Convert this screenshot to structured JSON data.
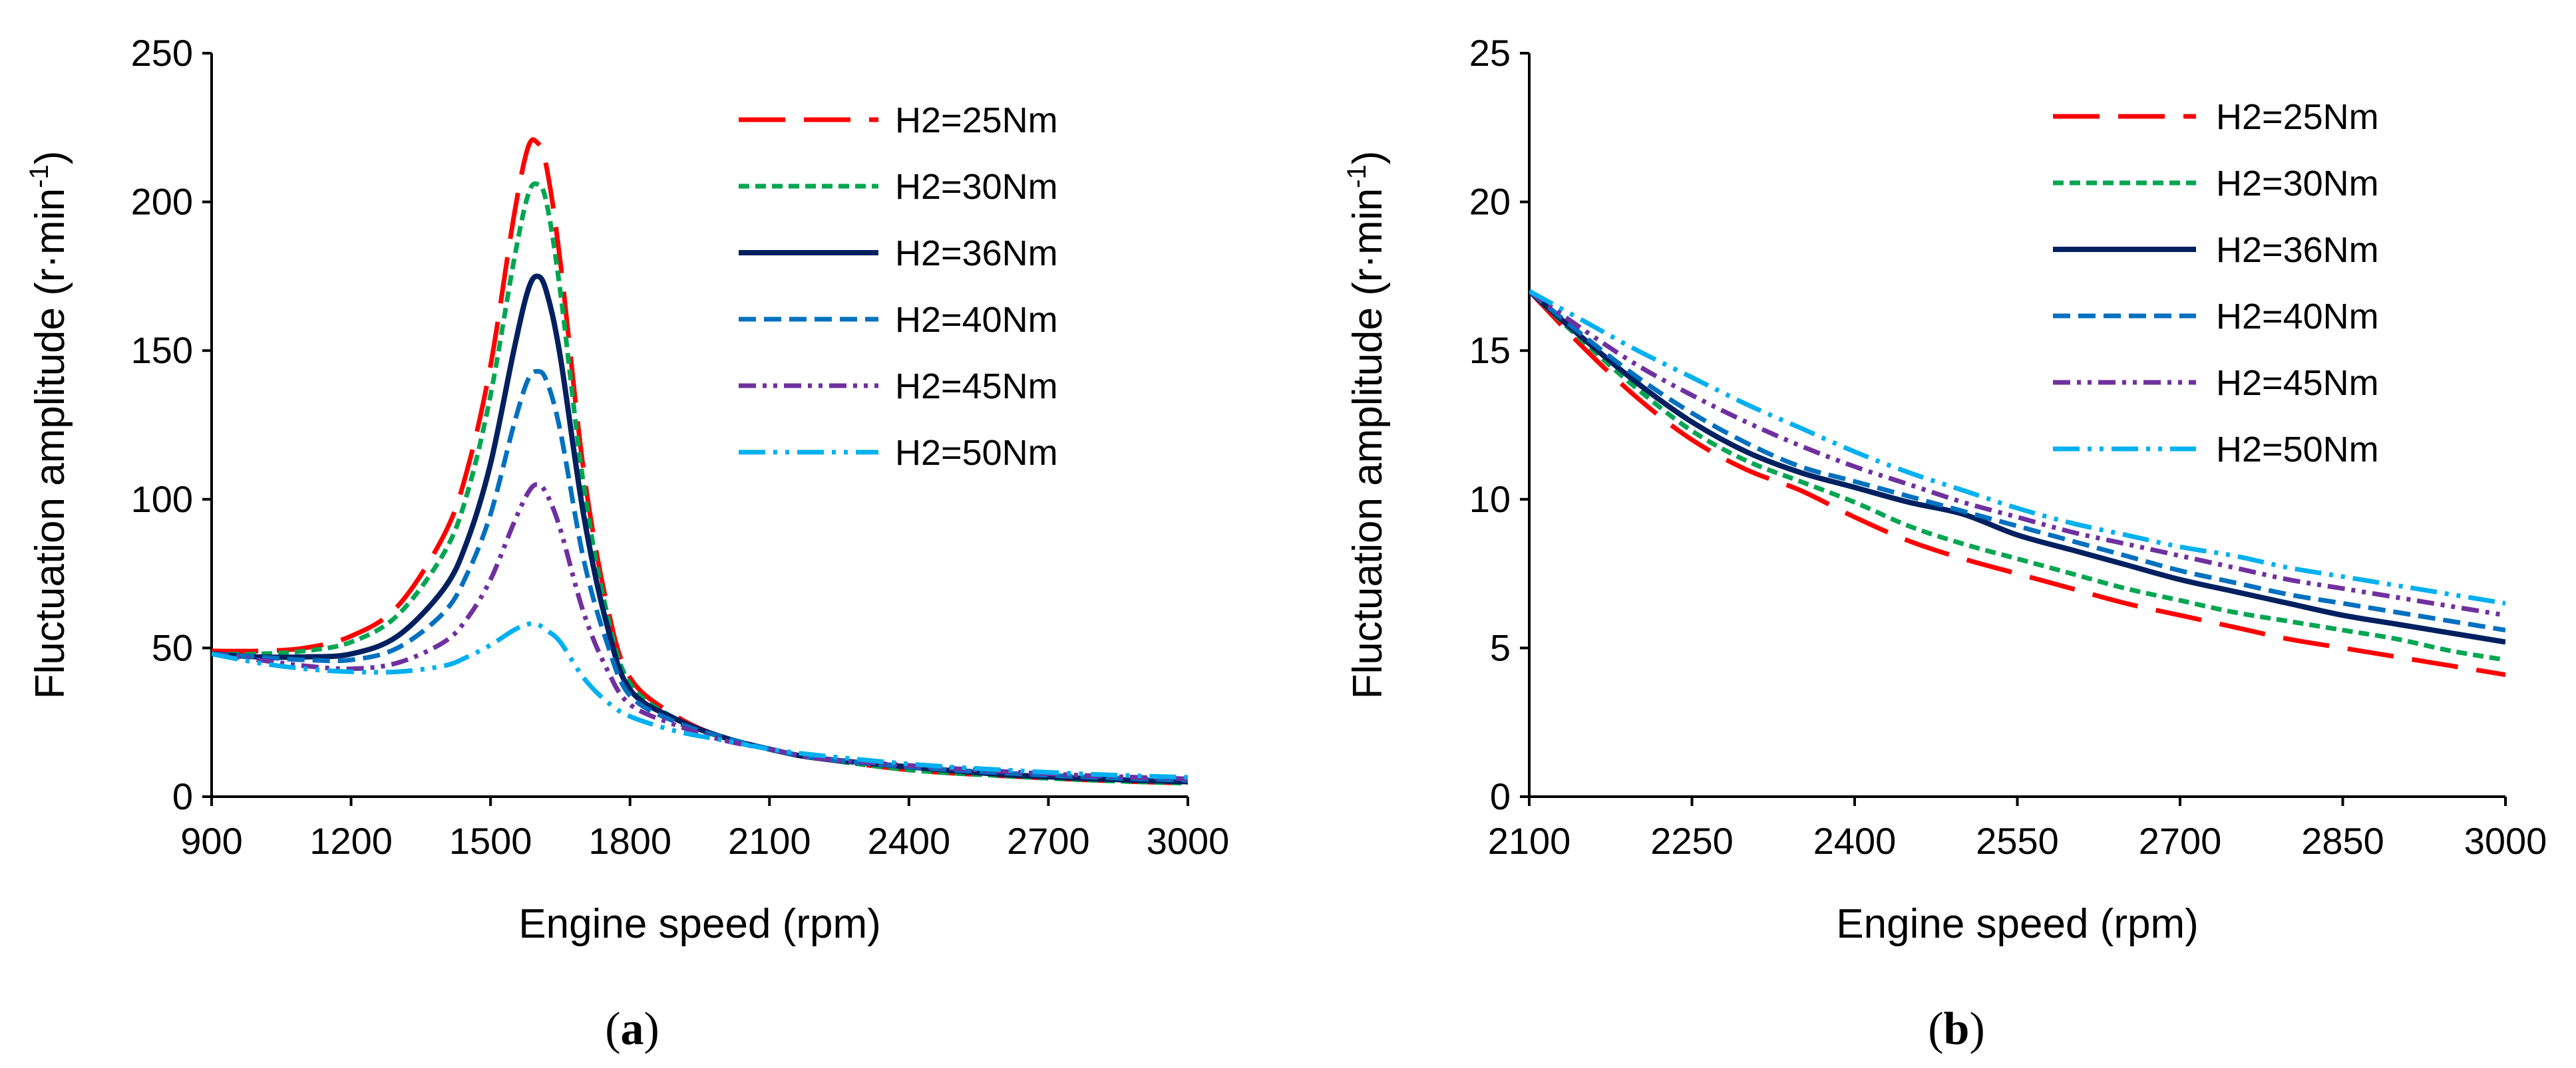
{
  "chart_data": [
    {
      "type": "line",
      "panel": "a",
      "caption": {
        "open": "(",
        "letter": "a",
        "close": ")"
      },
      "xlabel": "Engine speed (rpm)",
      "ylabel": "Fluctuation amplitude (r·min",
      "ylabel_sup": "-1",
      "ylabel_close": ")",
      "xlim": [
        900,
        3000
      ],
      "ylim": [
        0,
        250
      ],
      "xticks": [
        900,
        1200,
        1500,
        1800,
        2100,
        2400,
        2700,
        3000
      ],
      "yticks": [
        0,
        50,
        100,
        150,
        200,
        250
      ],
      "legend_position": "top-right",
      "x": [
        900,
        1000,
        1100,
        1200,
        1300,
        1400,
        1450,
        1500,
        1550,
        1580,
        1600,
        1620,
        1650,
        1700,
        1750,
        1800,
        1900,
        2000,
        2100,
        2200,
        2400,
        2600,
        2800,
        3000
      ],
      "series": [
        {
          "name": "H2=25Nm",
          "color": "#ff0000",
          "dash": "70,28",
          "width": 7,
          "values": [
            49,
            49,
            50,
            54,
            64,
            88,
            110,
            145,
            195,
            218,
            220,
            212,
            180,
            110,
            65,
            40,
            27,
            20,
            16,
            13,
            9,
            7,
            5.5,
            4.5
          ]
        },
        {
          "name": "H2=30Nm",
          "color": "#00a651",
          "dash": "16,9",
          "width": 7,
          "values": [
            48,
            48,
            49,
            52,
            61,
            82,
            102,
            135,
            180,
            202,
            206,
            200,
            170,
            105,
            62,
            38,
            26,
            20,
            16,
            13,
            9,
            7,
            5.5,
            4.5
          ]
        },
        {
          "name": "H2=36Nm",
          "color": "#002060",
          "dash": "",
          "width": 8,
          "values": [
            48,
            47,
            47,
            48,
            54,
            70,
            86,
            112,
            150,
            170,
            175,
            170,
            148,
            95,
            58,
            36,
            26,
            20,
            16,
            13,
            10,
            7.5,
            6,
            5
          ]
        },
        {
          "name": "H2=40Nm",
          "color": "#0070c0",
          "dash": "26,12",
          "width": 7,
          "values": [
            48,
            47,
            46,
            46,
            50,
            62,
            75,
            95,
            125,
            140,
            143,
            140,
            123,
            80,
            52,
            34,
            25,
            20,
            16,
            13,
            10,
            8,
            6.5,
            5.5
          ]
        },
        {
          "name": "H2=45Nm",
          "color": "#7030a0",
          "dash": "26,10,6,10,6,10",
          "width": 7,
          "values": [
            48,
            46,
            44,
            43,
            45,
            52,
            60,
            73,
            92,
            102,
            105,
            102,
            90,
            62,
            43,
            31,
            24,
            19,
            16,
            13,
            10.5,
            8.5,
            7,
            6
          ]
        },
        {
          "name": "H2=50Nm",
          "color": "#00b0f0",
          "dash": "40,12,6,12,6,12",
          "width": 7,
          "values": [
            48,
            45,
            43,
            42,
            42,
            44,
            47,
            51,
            56,
            58,
            58,
            56,
            52,
            40,
            32,
            27,
            22,
            19,
            16,
            14,
            11,
            9,
            7.5,
            6.5
          ]
        }
      ]
    },
    {
      "type": "line",
      "panel": "b",
      "caption": {
        "open": "(",
        "letter": "b",
        "close": ")"
      },
      "xlabel": "Engine speed (rpm)",
      "ylabel": "Fluctuation amplitude (r·min",
      "ylabel_sup": "-1",
      "ylabel_close": ")",
      "xlim": [
        2100,
        3000
      ],
      "ylim": [
        0,
        25
      ],
      "xticks": [
        2100,
        2250,
        2400,
        2550,
        2700,
        2850,
        3000
      ],
      "yticks": [
        0,
        5,
        10,
        15,
        20,
        25
      ],
      "legend_position": "top-right",
      "x": [
        2100,
        2150,
        2200,
        2250,
        2300,
        2350,
        2400,
        2450,
        2500,
        2550,
        2600,
        2650,
        2700,
        2750,
        2800,
        2850,
        2900,
        2950,
        3000
      ],
      "series": [
        {
          "name": "H2=25Nm",
          "color": "#ff0000",
          "dash": "70,28",
          "width": 7,
          "values": [
            17,
            15.1,
            13.4,
            12,
            11,
            10.3,
            9.4,
            8.6,
            8,
            7.5,
            7,
            6.5,
            6.1,
            5.7,
            5.3,
            5,
            4.7,
            4.4,
            4.1
          ]
        },
        {
          "name": "H2=30Nm",
          "color": "#00a651",
          "dash": "16,9",
          "width": 7,
          "values": [
            17,
            15.3,
            13.7,
            12.3,
            11.3,
            10.6,
            9.9,
            9.1,
            8.5,
            8,
            7.5,
            7,
            6.6,
            6.2,
            5.9,
            5.6,
            5.3,
            4.9,
            4.6
          ]
        },
        {
          "name": "H2=36Nm",
          "color": "#002060",
          "dash": "",
          "width": 8,
          "values": [
            17,
            15.4,
            13.9,
            12.6,
            11.6,
            10.9,
            10.4,
            9.9,
            9.5,
            8.8,
            8.3,
            7.8,
            7.3,
            6.9,
            6.5,
            6.1,
            5.8,
            5.5,
            5.2
          ]
        },
        {
          "name": "H2=40Nm",
          "color": "#0070c0",
          "dash": "26,12",
          "width": 7,
          "values": [
            17,
            15.5,
            14.1,
            12.9,
            11.9,
            11.1,
            10.6,
            10.1,
            9.6,
            9.1,
            8.6,
            8.1,
            7.6,
            7.2,
            6.8,
            6.5,
            6.2,
            5.9,
            5.6
          ]
        },
        {
          "name": "H2=45Nm",
          "color": "#7030a0",
          "dash": "26,10,6,10,6,10",
          "width": 7,
          "values": [
            17,
            15.7,
            14.5,
            13.5,
            12.6,
            11.8,
            11.1,
            10.5,
            9.9,
            9.4,
            8.9,
            8.5,
            8.1,
            7.7,
            7.3,
            7,
            6.7,
            6.4,
            6.1
          ]
        },
        {
          "name": "H2=50Nm",
          "color": "#00b0f0",
          "dash": "40,12,6,12,6,12",
          "width": 7,
          "values": [
            17,
            16,
            15,
            14.1,
            13.2,
            12.4,
            11.6,
            10.9,
            10.3,
            9.7,
            9.2,
            8.8,
            8.4,
            8.1,
            7.7,
            7.4,
            7.1,
            6.8,
            6.5
          ]
        }
      ]
    }
  ]
}
